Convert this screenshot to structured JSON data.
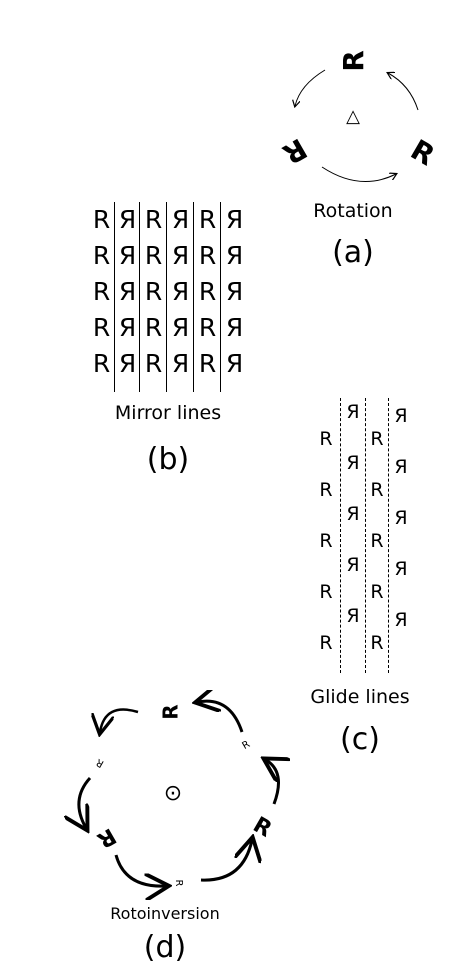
{
  "panels": {
    "rotation": {
      "caption": "Rotation",
      "label": "(a)",
      "center_symbol": "△",
      "letter": "R"
    },
    "mirror": {
      "caption": "Mirror lines",
      "label": "(b)",
      "row_letters": [
        "R",
        "Я",
        "R",
        "Я",
        "R",
        "Я"
      ],
      "rows": 5
    },
    "glide": {
      "caption": "Glide lines",
      "label": "(c)",
      "upper_letter": "Я",
      "lower_letter": "R",
      "repeats": 5
    },
    "rotoinversion": {
      "caption": "Rotoinversion",
      "label": "(d)",
      "center_symbol": "⊙",
      "letter": "R"
    }
  }
}
